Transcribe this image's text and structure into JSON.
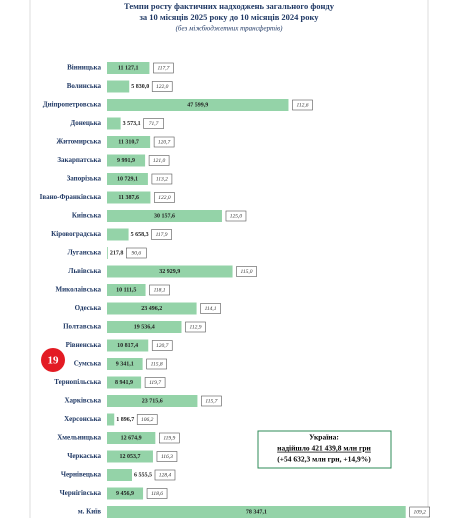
{
  "chart_data": {
    "type": "bar",
    "orientation": "horizontal",
    "title": "Темпи росту фактичних надходжень загального фонду",
    "subtitle": "за 10 місяців 2025 року до 10 місяців 2024 року",
    "note": "(без міжбюджетних трансфертів)",
    "categories": [
      "Вінницька",
      "Волинська",
      "Дніпропетровська",
      "Донецька",
      "Житомирська",
      "Закарпатська",
      "Запорізька",
      "Івано-Франківська",
      "Київська",
      "Кіровоградська",
      "Луганська",
      "Львівська",
      "Миколаївська",
      "Одеська",
      "Полтавська",
      "Рівненська",
      "Сумська",
      "Тернопільська",
      "Харківська",
      "Херсонська",
      "Хмельницька",
      "Черкаська",
      "Чернівецька",
      "Чернігівська",
      "м. Київ"
    ],
    "values": [
      11127.1,
      5830.0,
      47599.9,
      3573.1,
      11310.7,
      9991.9,
      10729.1,
      11387.6,
      30157.6,
      5658.3,
      217.8,
      32929.9,
      10111.5,
      23496.2,
      19536.4,
      10817.4,
      9341.1,
      8941.9,
      23715.6,
      1896.7,
      12674.9,
      12053.7,
      6555.5,
      9456.9,
      78347.1
    ],
    "value_labels": [
      "11 127,1",
      "5 830,0",
      "47 599,9",
      "3 573,1",
      "11 310,7",
      "9 991,9",
      "10 729,1",
      "11 387,6",
      "30 157,6",
      "5 658,3",
      "217,8",
      "32 929,9",
      "10 111,5",
      "23 496,2",
      "19 536,4",
      "10 817,4",
      "9 341,1",
      "8 941,9",
      "23 715,6",
      "1 896,7",
      "12 674,9",
      "12 053,7",
      "6 555,5",
      "9 456,9",
      "78 347,1"
    ],
    "growth": {
      "values": [
        117.7,
        122.0,
        112.6,
        71.7,
        120.7,
        121.0,
        113.2,
        122.0,
        125.0,
        117.9,
        90.6,
        115.0,
        118.1,
        114.1,
        112.9,
        120.7,
        115.8,
        119.7,
        115.7,
        106.2,
        119.9,
        116.3,
        128.4,
        118.6,
        109.2
      ],
      "value_labels": [
        "117,7",
        "122,0",
        "112,6",
        "71,7",
        "120,7",
        "121,0",
        "113,2",
        "122,0",
        "125,0",
        "117,9",
        "90,6",
        "115,0",
        "118,1",
        "114,1",
        "112,9",
        "120,7",
        "115,8",
        "119,7",
        "115,7",
        "106,2",
        "119,9",
        "116,3",
        "128,4",
        "118,6",
        "109,2"
      ]
    },
    "color": "#94d3a8",
    "xlim": [
      0,
      80000
    ],
    "summary": [
      "Україна:",
      "надійшло 421 439,8 млн грн",
      "(+54 632,3 млн грн, +14,9%)"
    ],
    "marker": "19"
  }
}
